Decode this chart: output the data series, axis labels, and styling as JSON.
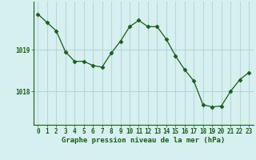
{
  "x": [
    0,
    1,
    2,
    3,
    4,
    5,
    6,
    7,
    8,
    9,
    10,
    11,
    12,
    13,
    14,
    15,
    16,
    17,
    18,
    19,
    20,
    21,
    22,
    23
  ],
  "y": [
    1019.85,
    1019.65,
    1019.45,
    1018.95,
    1018.72,
    1018.72,
    1018.62,
    1018.58,
    1018.92,
    1019.2,
    1019.55,
    1019.7,
    1019.55,
    1019.55,
    1019.25,
    1018.85,
    1018.52,
    1018.25,
    1017.68,
    1017.63,
    1017.65,
    1018.0,
    1018.28,
    1018.45
  ],
  "line_color": "#1a5c1a",
  "marker": "D",
  "marker_size": 2.5,
  "bg_color": "#d6f0f0",
  "grid_color": "#b8d8d8",
  "ylabel_ticks": [
    1018,
    1019
  ],
  "xlabel": "Graphe pression niveau de la mer (hPa)",
  "xlabel_fontsize": 6.5,
  "tick_fontsize": 5.5,
  "ylim": [
    1017.2,
    1020.15
  ],
  "xlim": [
    -0.5,
    23.5
  ]
}
